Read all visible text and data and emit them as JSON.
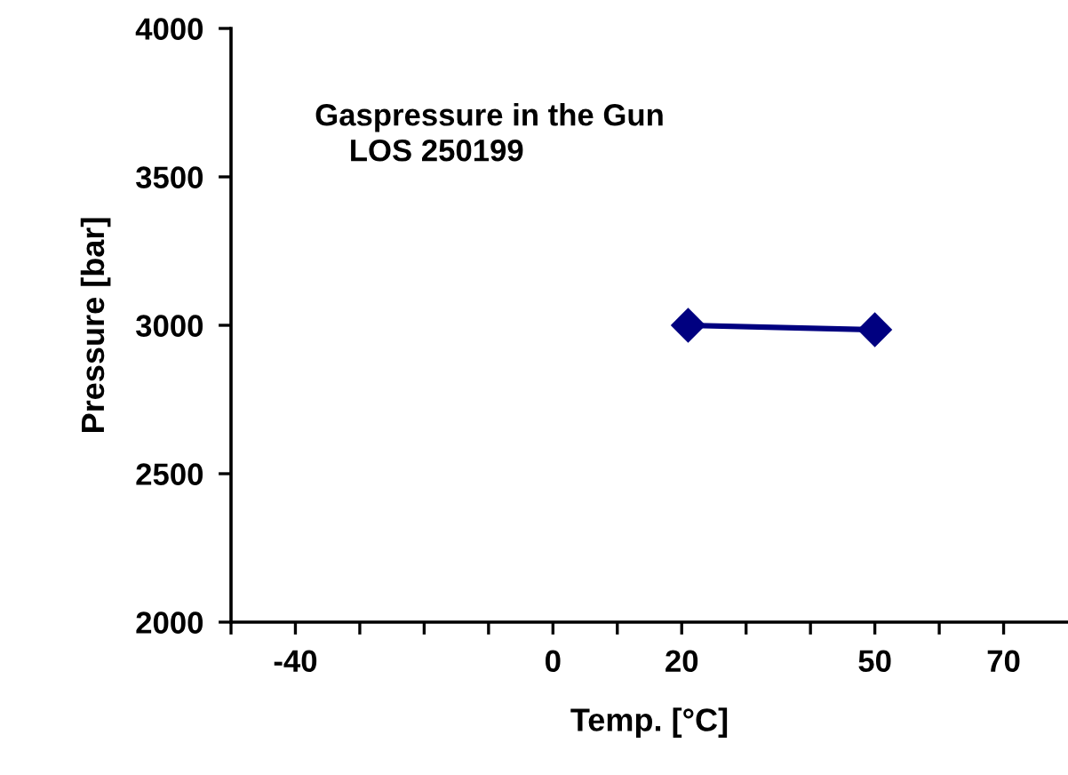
{
  "chart_data": {
    "type": "line",
    "title": "Gaspressure in the Gun\n    LOS 250199",
    "xlabel": "Temp. [°C]",
    "ylabel": "Pressure [bar]",
    "x": [
      21,
      50
    ],
    "series": [
      {
        "color": "#000080",
        "values": [
          3000,
          2985
        ]
      }
    ],
    "marker": "diamond",
    "line_style": "solid",
    "grid": false,
    "legend": false,
    "xlim": [
      -50,
      80
    ],
    "xticks": [
      {
        "value": -50,
        "label": null
      },
      -40,
      {
        "value": -30,
        "label": null
      },
      {
        "value": -20,
        "label": null
      },
      {
        "value": -10,
        "label": null
      },
      0,
      {
        "value": 10,
        "label": null
      },
      20,
      {
        "value": 30,
        "label": null
      },
      {
        "value": 40,
        "label": null
      },
      50,
      {
        "value": 60,
        "label": null
      },
      70
    ],
    "ylim": [
      2000,
      4000
    ],
    "yticks": [
      2000,
      2500,
      3000,
      3500,
      4000
    ]
  }
}
